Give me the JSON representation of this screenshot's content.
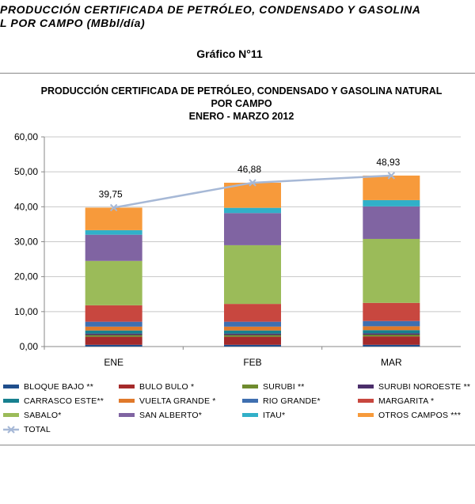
{
  "document": {
    "heading": "PRODUCCIÓN CERTIFICADA DE PETRÓLEO, CONDENSADO Y GASOLINA\nL POR CAMPO (MBbl/día)",
    "figure_label": "Gráfico N°11"
  },
  "chart_data": {
    "type": "bar",
    "stacked": true,
    "title": [
      "PRODUCCIÓN CERTIFICADA DE PETRÓLEO, CONDENSADO Y GASOLINA NATURAL",
      "POR  CAMPO",
      "ENERO - MARZO 2012"
    ],
    "categories": [
      "ENE",
      "FEB",
      "MAR"
    ],
    "ylim": [
      0,
      60
    ],
    "ytick_values": [
      0,
      10,
      20,
      30,
      40,
      50,
      60
    ],
    "ytick_labels": [
      "0,00",
      "10,00",
      "20,00",
      "30,00",
      "40,00",
      "50,00",
      "60,00"
    ],
    "xlabel": "",
    "ylabel": "",
    "grid": true,
    "legend_position": "bottom",
    "series": [
      {
        "name": "BLOQUE BAJO **",
        "color": "#1F4E8C",
        "values": [
          0.5,
          0.5,
          0.5
        ]
      },
      {
        "name": "BULO BULO *",
        "color": "#A52A2A",
        "values": [
          2.3,
          2.3,
          2.4
        ]
      },
      {
        "name": "SURUBI **",
        "color": "#6E8B2E",
        "values": [
          0.5,
          0.5,
          0.5
        ]
      },
      {
        "name": "SURUBI NOROESTE **",
        "color": "#4B2E6B",
        "values": [
          0.4,
          0.4,
          0.4
        ]
      },
      {
        "name": "CARRASCO ESTE**",
        "color": "#17808F",
        "values": [
          0.9,
          0.9,
          0.9
        ]
      },
      {
        "name": "VUELTA GRANDE *",
        "color": "#E0792B",
        "values": [
          1.1,
          1.1,
          1.1
        ]
      },
      {
        "name": "RIO GRANDE*",
        "color": "#3F6FB0",
        "values": [
          1.4,
          1.4,
          1.5
        ]
      },
      {
        "name": "MARGARITA *",
        "color": "#C8473F",
        "values": [
          4.7,
          5.1,
          5.2
        ]
      },
      {
        "name": "SABALO*",
        "color": "#9BBB59",
        "values": [
          12.7,
          16.8,
          18.3
        ]
      },
      {
        "name": "SAN ALBERTO*",
        "color": "#8064A2",
        "values": [
          7.5,
          9.2,
          9.3
        ]
      },
      {
        "name": "ITAU*",
        "color": "#31B0C8",
        "values": [
          1.3,
          1.5,
          1.8
        ]
      },
      {
        "name": "OTROS CAMPOS ***",
        "color": "#F79A3B",
        "values": [
          6.45,
          7.18,
          7.03
        ]
      }
    ],
    "line_series": {
      "name": "TOTAL",
      "color": "#A6B8D6",
      "values": [
        39.75,
        46.88,
        48.93
      ],
      "labels": [
        "39,75",
        "46,88",
        "48,93"
      ]
    }
  }
}
